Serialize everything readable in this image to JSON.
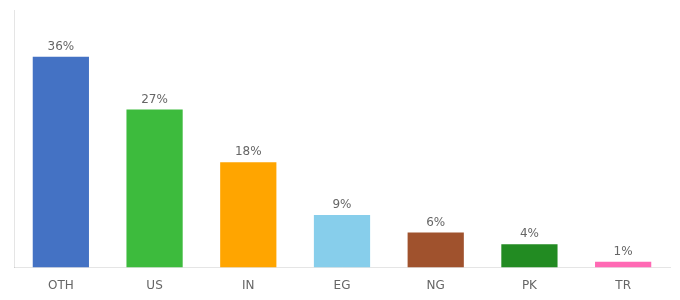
{
  "chart_data": {
    "type": "bar",
    "categories": [
      "OTH",
      "US",
      "IN",
      "EG",
      "NG",
      "PK",
      "TR"
    ],
    "values": [
      36,
      27,
      18,
      9,
      6,
      4,
      1
    ],
    "value_labels": [
      "36%",
      "27%",
      "18%",
      "9%",
      "6%",
      "4%",
      "1%"
    ],
    "colors": [
      "#4472C4",
      "#3DBB3D",
      "#FFA500",
      "#87CEEB",
      "#A0522D",
      "#228B22",
      "#FF69B4"
    ],
    "ylim": [
      0,
      44
    ],
    "grid": false,
    "legend": false,
    "data_labels": true,
    "tick_labels": "x"
  }
}
